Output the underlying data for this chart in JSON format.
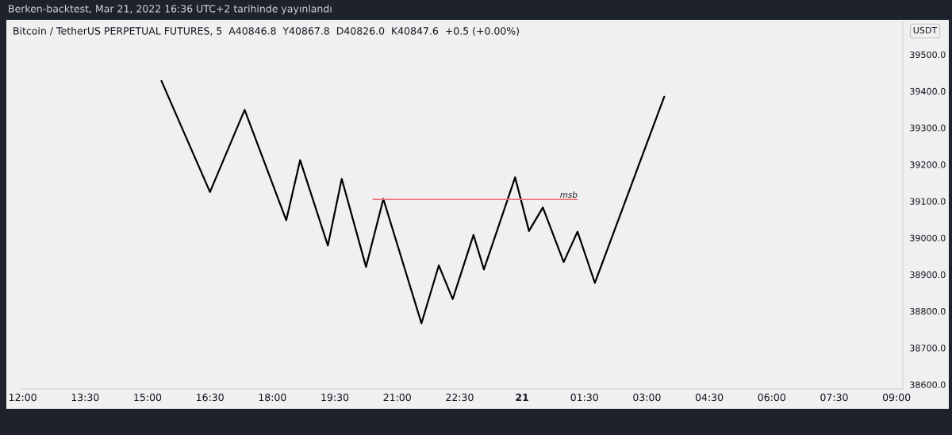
{
  "chart_data": {
    "type": "line",
    "title": "Bitcoin / TetherUS PERPETUAL FUTURES, 5  A40846.8  Y40867.8  D40826.0  K40847.6  +0.5 (+0.00%)",
    "ylabel": "USDT",
    "annotations": [
      "Berken-backtest, Mar 21, 2022 16:36 UTC+2 tarihinde yayınlandı"
    ],
    "line_style": "solid",
    "series": [
      {
        "color": "#000000",
        "x": [
          "2022-03-20T15:20",
          "2022-03-20T16:30",
          "2022-03-20T17:20",
          "2022-03-20T18:20",
          "2022-03-20T18:40",
          "2022-03-20T19:20",
          "2022-03-20T19:40",
          "2022-03-20T20:15",
          "2022-03-20T20:40",
          "2022-03-20T21:35",
          "2022-03-20T22:00",
          "2022-03-20T22:20",
          "2022-03-20T22:50",
          "2022-03-20T23:05",
          "2022-03-20T23:50",
          "2022-03-21T00:10",
          "2022-03-21T00:30",
          "2022-03-21T01:00",
          "2022-03-21T01:20",
          "2022-03-21T01:45",
          "2022-03-21T03:25"
        ],
        "values": [
          39428,
          39125,
          39349,
          39048,
          39212,
          38979,
          39161,
          38921,
          39106,
          38767,
          38925,
          38833,
          39008,
          38914,
          39165,
          39019,
          39083,
          38934,
          39017,
          38877,
          39385
        ]
      },
      {
        "name": "msb",
        "color": "#f26d75",
        "x": [
          "2022-03-20T20:25",
          "2022-03-21T01:20"
        ],
        "values": [
          39105,
          39105
        ]
      }
    ],
    "xlim": [
      "2022-03-20T11:57",
      "2022-03-21T09:09"
    ],
    "xticks": [
      {
        "value": "2022-03-20T12:00",
        "label": "12:00"
      },
      {
        "value": "2022-03-20T13:30",
        "label": "13:30"
      },
      {
        "value": "2022-03-20T15:00",
        "label": "15:00"
      },
      {
        "value": "2022-03-20T16:30",
        "label": "16:30"
      },
      {
        "value": "2022-03-20T18:00",
        "label": "18:00"
      },
      {
        "value": "2022-03-20T19:30",
        "label": "19:30"
      },
      {
        "value": "2022-03-20T21:00",
        "label": "21:00"
      },
      {
        "value": "2022-03-20T22:30",
        "label": "22:30"
      },
      {
        "value": "2022-03-21T00:00",
        "label": "21"
      },
      {
        "value": "2022-03-21T01:30",
        "label": "01:30"
      },
      {
        "value": "2022-03-21T03:00",
        "label": "03:00"
      },
      {
        "value": "2022-03-21T04:30",
        "label": "04:30"
      },
      {
        "value": "2022-03-21T06:00",
        "label": "06:00"
      },
      {
        "value": "2022-03-21T07:30",
        "label": "07:30"
      },
      {
        "value": "2022-03-21T09:00",
        "label": "09:00"
      }
    ],
    "ylim": [
      38588,
      39588
    ],
    "yticks": [
      {
        "value": 38600,
        "label": "38600.0"
      },
      {
        "value": 38700,
        "label": "38700.0"
      },
      {
        "value": 38800,
        "label": "38800.0"
      },
      {
        "value": 38900,
        "label": "38900.0"
      },
      {
        "value": 39000,
        "label": "39000.0"
      },
      {
        "value": 39100,
        "label": "39100.0"
      },
      {
        "value": 39200,
        "label": "39200.0"
      },
      {
        "value": 39300,
        "label": "39300.0"
      },
      {
        "value": 39400,
        "label": "39400.0"
      },
      {
        "value": 39500,
        "label": "39500.0"
      }
    ]
  }
}
